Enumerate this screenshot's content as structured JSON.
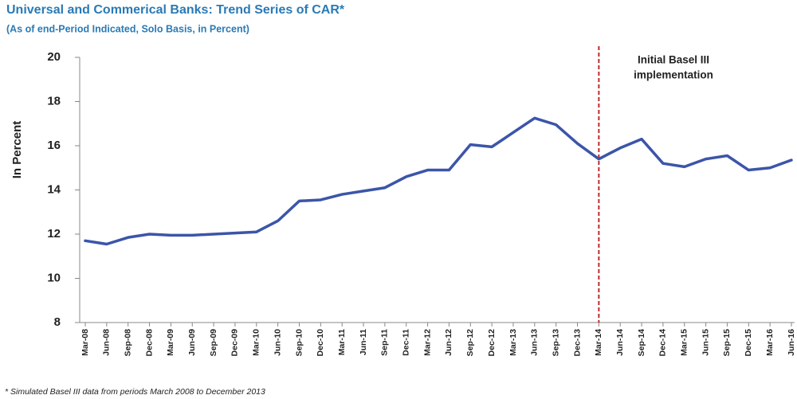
{
  "chart_data": {
    "type": "line",
    "title": "Universal and Commerical Banks:  Trend Series of CAR*",
    "subtitle": "(As of end-Period Indicated, Solo Basis, in Percent)",
    "y_label": "In Percent",
    "footnote": "*  Simulated Basel III data from periods March 2008 to December 2013",
    "categories": [
      "Mar-08",
      "Jun-08",
      "Sep-08",
      "Dec-08",
      "Mar-09",
      "Jun-09",
      "Sep-09",
      "Dec-09",
      "Mar-10",
      "Jun-10",
      "Sep-10",
      "Dec-10",
      "Mar-11",
      "Jun-11",
      "Sep-11",
      "Dec-11",
      "Mar-12",
      "Jun-12",
      "Sep-12",
      "Dec-12",
      "Mar-13",
      "Jun-13",
      "Sep-13",
      "Dec-13",
      "Mar-14",
      "Jun-14",
      "Sep-14",
      "Dec-14",
      "Mar-15",
      "Jun-15",
      "Sep-15",
      "Dec-15",
      "Mar-16",
      "Jun-16"
    ],
    "values": [
      11.7,
      11.55,
      11.85,
      12.0,
      11.95,
      11.95,
      12.0,
      12.05,
      12.1,
      12.6,
      13.5,
      13.55,
      13.8,
      13.95,
      14.1,
      14.6,
      14.9,
      14.9,
      16.05,
      15.95,
      16.6,
      17.25,
      16.95,
      16.1,
      15.4,
      15.9,
      16.3,
      15.2,
      15.05,
      15.4,
      15.55,
      14.9,
      15.0,
      15.35
    ],
    "color": "#3b55a8",
    "ylim": [
      8,
      20
    ],
    "yticks": [
      8,
      10,
      12,
      14,
      16,
      18,
      20
    ],
    "annotation": {
      "text": [
        "Initial Basel III",
        "implementation"
      ],
      "category": "Mar-14",
      "color": "#c0282d"
    }
  }
}
